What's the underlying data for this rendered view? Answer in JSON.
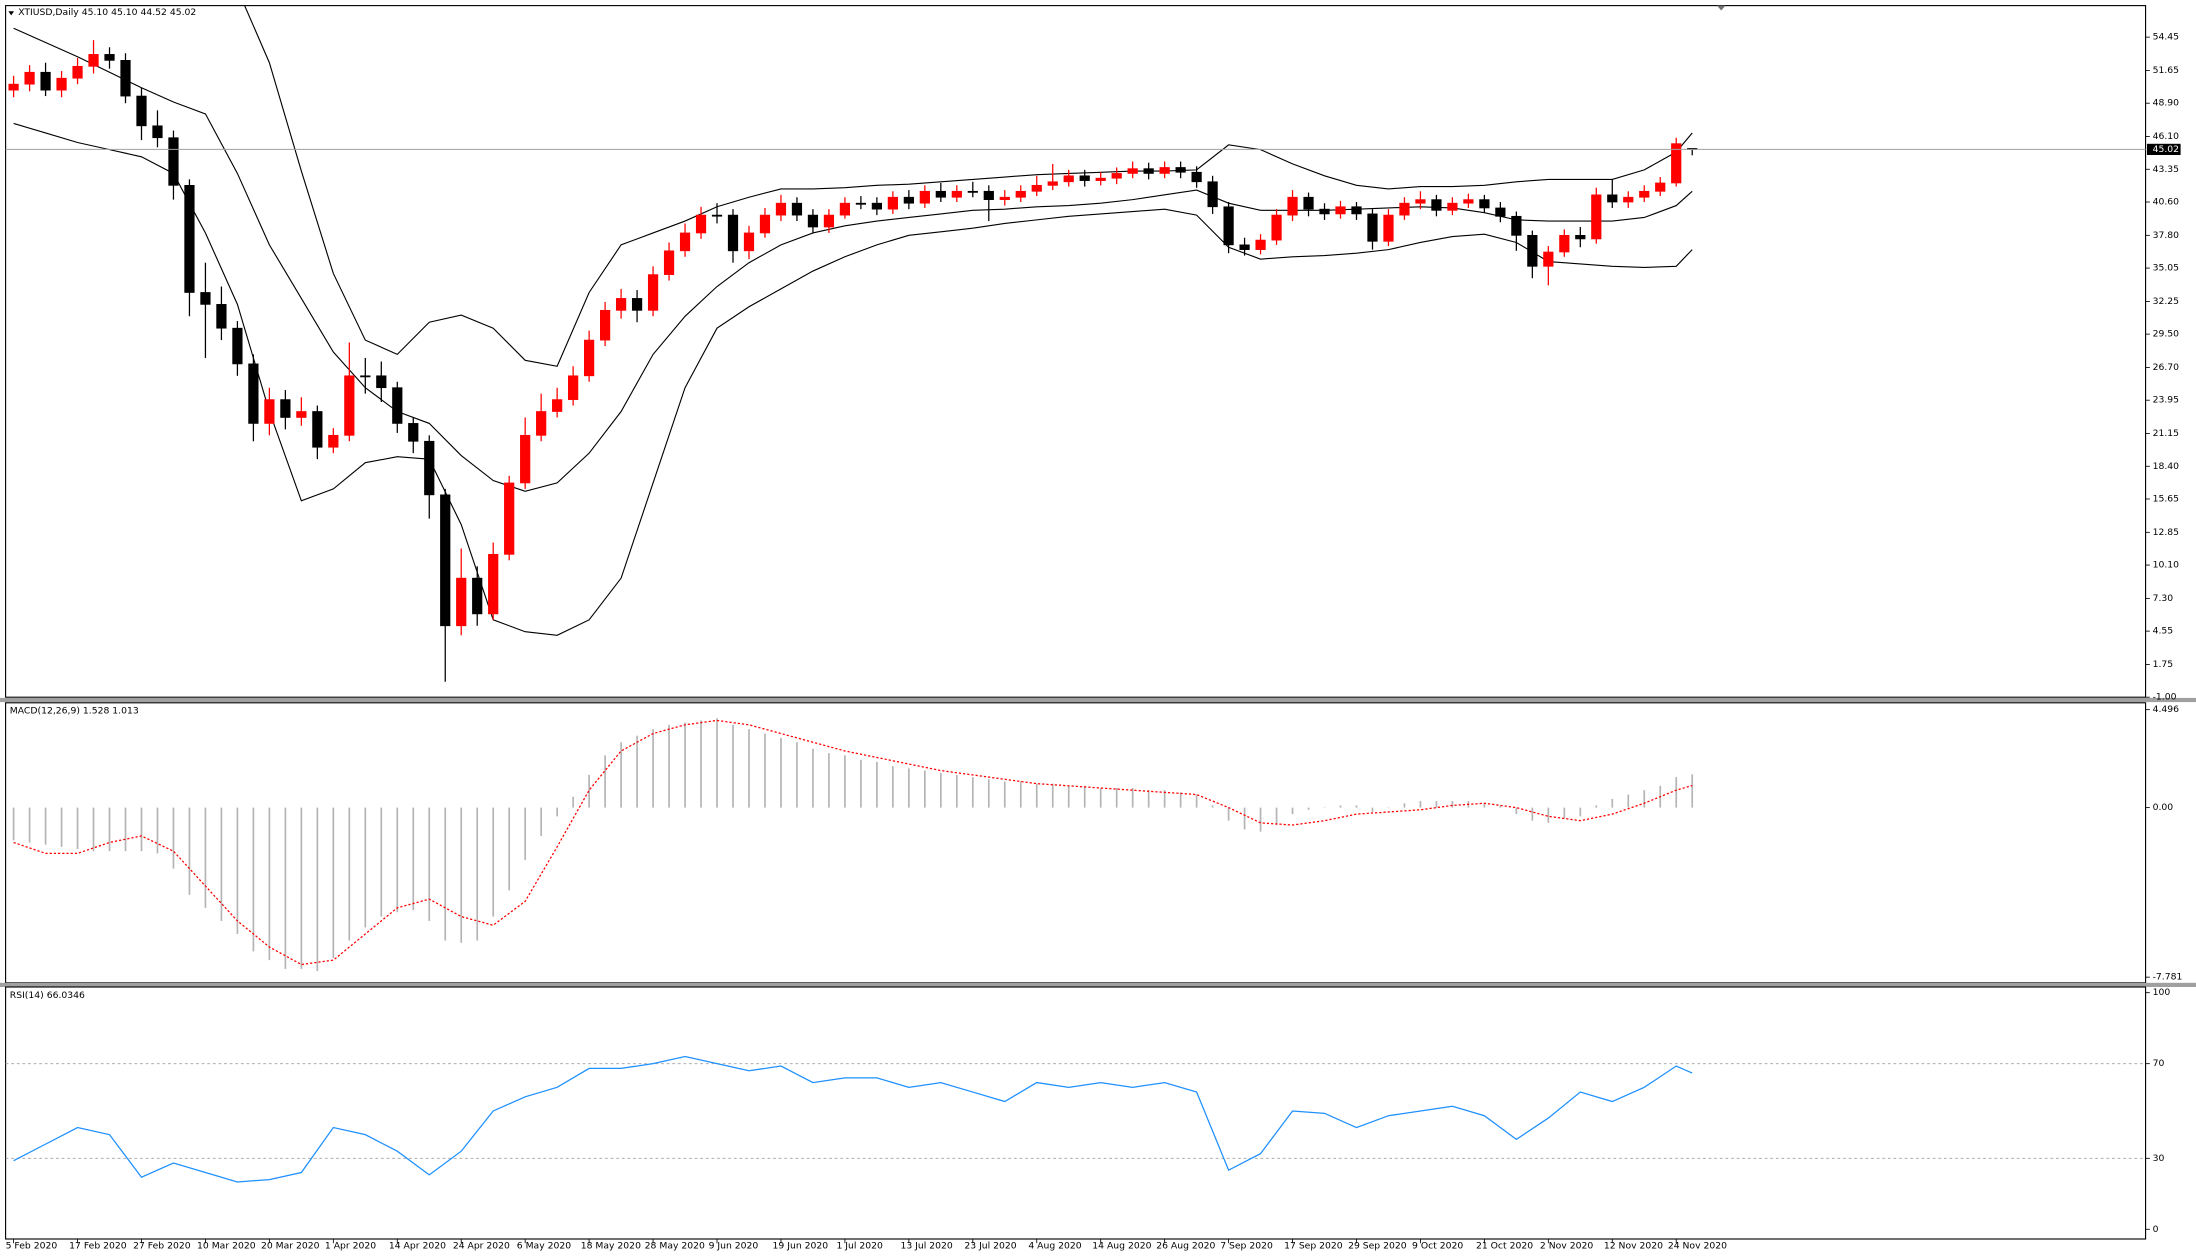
{
  "chart_data": [
    {
      "type": "candlestick",
      "title": "XTIUSD,Daily  45.10 45.10 44.52 45.02",
      "categories": [
        "5 Feb 2020",
        null,
        null,
        null,
        "17 Feb 2020",
        null,
        null,
        null,
        "27 Feb 2020",
        null,
        null,
        null,
        "10 Mar 2020",
        null,
        null,
        null,
        "20 Mar 2020",
        null,
        null,
        null,
        "1 Apr 2020",
        null,
        null,
        null,
        "14 Apr 2020",
        null,
        null,
        null,
        "24 Apr 2020",
        null,
        null,
        null,
        "6 May 2020",
        null,
        null,
        null,
        "18 May 2020",
        null,
        null,
        null,
        "28 May 2020",
        null,
        null,
        null,
        "9 Jun 2020",
        null,
        null,
        null,
        "19 Jun 2020",
        null,
        null,
        null,
        "1 Jul 2020",
        null,
        null,
        null,
        "13 Jul 2020",
        null,
        null,
        null,
        "23 Jul 2020",
        null,
        null,
        null,
        "4 Aug 2020",
        null,
        null,
        null,
        "14 Aug 2020",
        null,
        null,
        null,
        "26 Aug 2020",
        null,
        null,
        null,
        "7 Sep 2020",
        null,
        null,
        null,
        "17 Sep 2020",
        null,
        null,
        null,
        "29 Sep 2020",
        null,
        null,
        null,
        "9 Oct 2020",
        null,
        null,
        null,
        "21 Oct 2020",
        null,
        null,
        null,
        "2 Nov 2020",
        null,
        null,
        null,
        "12 Nov 2020",
        null,
        null,
        null,
        "24 Nov 2020",
        null
      ],
      "open": [
        50.0,
        50.5,
        51.5,
        50,
        51,
        52,
        53,
        52.5,
        49.5,
        47,
        46,
        42,
        33,
        32,
        30,
        27,
        22,
        24,
        22.5,
        23,
        20,
        21,
        26,
        26,
        25,
        22,
        20.5,
        16,
        5,
        9,
        6,
        11,
        17,
        21,
        23,
        24,
        26,
        29,
        31.5,
        32.5,
        31.5,
        34.5,
        36.5,
        38,
        39.5,
        39.5,
        36.5,
        38,
        39.5,
        40.5,
        39.5,
        38.5,
        39.5,
        40.5,
        40.5,
        40,
        41,
        40.5,
        41.5,
        41,
        41.5,
        41.5,
        40.8,
        41,
        41.5,
        42,
        42.3,
        42.8,
        42.4,
        42.6,
        43,
        43.4,
        43,
        43.5,
        43.1,
        42.3,
        40.2,
        37,
        36.6,
        37.4,
        39.5,
        41,
        40,
        39.6,
        40.2,
        39.6,
        37.3,
        39.5,
        40.5,
        40.8,
        39.9,
        40.5,
        40.8,
        40.1,
        39.4,
        37.8,
        35.2,
        36.4,
        37.8,
        37.5,
        41.2,
        40.6,
        41,
        41.5,
        42.2,
        45.1
      ],
      "high": [
        51.2,
        52.1,
        52.3,
        51.6,
        52.7,
        54.2,
        53.6,
        53.1,
        50.2,
        48.3,
        46.6,
        42.5,
        35.5,
        33.5,
        30.6,
        27.8,
        25,
        24.8,
        24.2,
        23.5,
        21.6,
        28.8,
        27.5,
        27.2,
        25.5,
        22.5,
        21,
        16.5,
        11.5,
        10,
        12,
        17.6,
        22.5,
        24.5,
        25,
        26.8,
        29.8,
        32.2,
        33.3,
        33.2,
        35.2,
        37.2,
        38.8,
        40.2,
        40.5,
        40,
        38.6,
        40.1,
        41.2,
        41,
        40,
        40,
        41,
        41.1,
        41,
        41.5,
        41.6,
        42,
        42.2,
        42,
        42.3,
        42,
        41.6,
        42,
        42.8,
        43.8,
        43.3,
        43.3,
        43.1,
        43.5,
        44,
        43.9,
        44,
        44,
        43.6,
        42.8,
        40.6,
        37.6,
        37.9,
        40,
        41.6,
        41.4,
        40.5,
        40.7,
        40.6,
        40,
        40,
        41,
        41.5,
        41.2,
        41,
        41.3,
        41.2,
        40.6,
        39.8,
        38.2,
        36.9,
        38.3,
        38.5,
        41.8,
        42.5,
        41.5,
        42,
        42.7,
        46,
        45.1
      ],
      "low": [
        49.4,
        49.9,
        49.5,
        49.4,
        50.5,
        51.4,
        51.8,
        48.9,
        45.8,
        45.2,
        40.8,
        31,
        27.5,
        29,
        26,
        20.5,
        21,
        21.5,
        21.8,
        19,
        19.5,
        20.5,
        24.5,
        23.8,
        21.2,
        19.5,
        14,
        0.3,
        4.2,
        5,
        5.5,
        10.5,
        16.5,
        20.5,
        22.5,
        23.5,
        25.5,
        28.5,
        30.8,
        30.5,
        31,
        34,
        36,
        37.5,
        38.8,
        35.5,
        35.8,
        37.6,
        39,
        39,
        38,
        38,
        39.2,
        40,
        39.5,
        39.6,
        40,
        40.1,
        40.6,
        40.6,
        41,
        39,
        40.3,
        40.6,
        41.1,
        41.6,
        41.9,
        41.9,
        42,
        42.1,
        42.6,
        42.5,
        42.6,
        42.6,
        41.8,
        39.6,
        36.3,
        36.1,
        36.2,
        37,
        39,
        39.4,
        39.1,
        39.2,
        39.1,
        36.6,
        36.9,
        39.1,
        40,
        39.4,
        39.5,
        40.1,
        39.7,
        38.9,
        36.5,
        34.2,
        33.6,
        36,
        36.8,
        37.1,
        40.1,
        40.1,
        40.6,
        41.1,
        41.9,
        44.52
      ],
      "close": [
        50.5,
        51.5,
        50,
        51,
        52,
        53,
        52.5,
        49.5,
        47,
        46,
        42,
        33,
        32,
        30,
        27,
        22,
        24,
        22.5,
        23,
        20,
        21,
        26,
        26,
        25,
        22,
        20.5,
        16,
        5,
        9,
        6,
        11,
        17,
        21,
        23,
        24,
        26,
        29,
        31.5,
        32.5,
        31.5,
        34.5,
        36.5,
        38,
        39.5,
        39.5,
        36.5,
        38,
        39.5,
        40.5,
        39.5,
        38.5,
        39.5,
        40.5,
        40.5,
        40,
        41,
        40.5,
        41.5,
        41,
        41.5,
        41.5,
        40.8,
        41,
        41.5,
        42,
        42.3,
        42.8,
        42.4,
        42.6,
        43,
        43.4,
        43,
        43.5,
        43.1,
        42.3,
        40.2,
        37,
        36.6,
        37.4,
        39.5,
        41,
        40,
        39.6,
        40.2,
        39.6,
        37.3,
        39.5,
        40.5,
        40.8,
        39.9,
        40.5,
        40.8,
        40.1,
        39.4,
        37.8,
        35.2,
        36.4,
        37.8,
        37.5,
        41.2,
        40.6,
        41,
        41.5,
        42.2,
        45.5,
        45.02
      ],
      "up_color": "#ff0000",
      "down_color": "#000000",
      "line_x": [
        0,
        2,
        4,
        6,
        8,
        10,
        12,
        14,
        16,
        18,
        20,
        22,
        24,
        26,
        28,
        30,
        32,
        34,
        36,
        38,
        40,
        42,
        44,
        46,
        48,
        50,
        52,
        54,
        56,
        58,
        60,
        62,
        64,
        66,
        68,
        70,
        72,
        74,
        76,
        78,
        80,
        82,
        84,
        86,
        88,
        90,
        92,
        94,
        96,
        98,
        100,
        102,
        104,
        105
      ],
      "bollinger_upper": [
        63,
        63,
        63,
        62.5,
        62,
        61.5,
        60.5,
        58.5,
        52.3,
        43.2,
        34.6,
        29,
        27.8,
        30.5,
        31.1,
        30,
        27.3,
        26.8,
        33,
        37,
        38,
        39,
        40.2,
        41,
        41.7,
        41.7,
        41.8,
        42,
        42.1,
        42.3,
        42.5,
        42.7,
        42.9,
        43,
        43.1,
        43.2,
        43.2,
        43.3,
        45.4,
        45,
        43.8,
        42.8,
        42,
        41.7,
        41.9,
        41.9,
        42,
        42.3,
        42.5,
        42.5,
        42.5,
        43.3,
        44.8,
        46.4
      ],
      "bollinger_middle": [
        55.2,
        54,
        52.8,
        51.5,
        50.2,
        49,
        48,
        43,
        37,
        32.5,
        28,
        25,
        23,
        22,
        19.3,
        17.2,
        16.3,
        17,
        19.5,
        23,
        27.8,
        31,
        33.5,
        35.5,
        37,
        38,
        38.6,
        39,
        39.3,
        39.6,
        39.9,
        40,
        40.2,
        40.3,
        40.5,
        40.8,
        41.2,
        41.6,
        40.5,
        39.9,
        39.9,
        39.9,
        40,
        40.1,
        40.2,
        40.1,
        39.7,
        39.1,
        39,
        39,
        39,
        39.3,
        40.3,
        41.5
      ],
      "bollinger_lower": [
        47.2,
        46.4,
        45.6,
        45,
        44.4,
        43,
        38,
        32,
        23,
        15.5,
        16.5,
        18.7,
        19.2,
        19,
        13.5,
        5.5,
        4.5,
        4.2,
        5.5,
        9,
        17,
        25,
        30,
        31.8,
        33.3,
        34.8,
        36,
        37,
        37.8,
        38.1,
        38.4,
        38.8,
        39.1,
        39.4,
        39.6,
        39.8,
        40,
        39.5,
        36.8,
        35.8,
        36,
        36.1,
        36.3,
        36.6,
        37.2,
        37.7,
        37.9,
        37.2,
        35.6,
        35.4,
        35.2,
        35.1,
        35.2,
        36.6
      ],
      "band_color": "#000000",
      "current_price": 45.02,
      "ylim": [
        -1,
        57.1
      ],
      "yticks": [
        54.45,
        51.65,
        {
          "value": 48.9,
          "label": "48.90"
        },
        {
          "value": 46.1,
          "label": "46.10"
        },
        43.35,
        {
          "value": 40.6,
          "label": "40.60"
        },
        {
          "value": 37.8,
          "label": "37.80"
        },
        35.05,
        32.25,
        {
          "value": 29.5,
          "label": "29.50"
        },
        {
          "value": 26.7,
          "label": "26.70"
        },
        23.95,
        21.15,
        {
          "value": 18.4,
          "label": "18.40"
        },
        15.65,
        12.85,
        {
          "value": 10.1,
          "label": "10.10"
        },
        {
          "value": 7.3,
          "label": "7.30"
        },
        4.55,
        1.75,
        {
          "value": -1,
          "label": "-1.00"
        }
      ]
    },
    {
      "type": "macd",
      "title": "MACD(12,26,9) 1.528 1.013",
      "histogram": [
        -1.5,
        -1.6,
        -1.7,
        -1.8,
        -1.9,
        -2.0,
        -2.0,
        -2.0,
        -2.0,
        -2.1,
        -2.8,
        -4.0,
        -4.6,
        -5.2,
        -5.8,
        -6.6,
        -7.0,
        -7.4,
        -7.4,
        -7.5,
        -6.9,
        -6.1,
        -5.5,
        -5.0,
        -4.8,
        -4.7,
        -5.2,
        -6.1,
        -6.2,
        -6.1,
        -5.0,
        -3.8,
        -2.4,
        -1.3,
        -0.4,
        0.5,
        1.5,
        2.4,
        3.0,
        3.3,
        3.6,
        3.8,
        3.9,
        4.0,
        4.1,
        3.8,
        3.6,
        3.4,
        3.2,
        3.0,
        2.7,
        2.5,
        2.4,
        2.2,
        2.1,
        1.9,
        1.8,
        1.7,
        1.6,
        1.5,
        1.4,
        1.3,
        1.2,
        1.2,
        1.1,
        1.1,
        1.0,
        1.0,
        0.9,
        0.9,
        0.9,
        0.8,
        0.8,
        0.7,
        0.6,
        0.1,
        -0.6,
        -1.0,
        -1.1,
        -0.8,
        -0.3,
        -0.1,
        0.0,
        0.1,
        0.1,
        -0.2,
        0.0,
        0.2,
        0.3,
        0.3,
        0.3,
        0.3,
        0.2,
        0.1,
        -0.3,
        -0.6,
        -0.7,
        -0.5,
        -0.4,
        0.1,
        0.4,
        0.6,
        0.8,
        1.0,
        1.4,
        1.528
      ],
      "histogram_color": "#b4b4b4",
      "line_x": [
        0,
        2,
        4,
        6,
        8,
        10,
        12,
        14,
        16,
        18,
        20,
        22,
        24,
        26,
        28,
        30,
        32,
        34,
        36,
        38,
        40,
        42,
        44,
        46,
        48,
        50,
        52,
        54,
        56,
        58,
        60,
        62,
        64,
        66,
        68,
        70,
        72,
        74,
        76,
        78,
        80,
        82,
        84,
        86,
        88,
        90,
        92,
        94,
        96,
        98,
        100,
        102,
        104,
        105
      ],
      "signal": [
        -1.6,
        -2.1,
        -2.1,
        -1.6,
        -1.3,
        -2.0,
        -3.6,
        -5.2,
        -6.4,
        -7.2,
        -7.0,
        -5.8,
        -4.6,
        -4.2,
        -5.0,
        -5.4,
        -4.3,
        -1.8,
        0.8,
        2.6,
        3.4,
        3.8,
        4.0,
        3.8,
        3.4,
        3.0,
        2.6,
        2.3,
        2.0,
        1.7,
        1.5,
        1.3,
        1.1,
        1.0,
        0.9,
        0.8,
        0.7,
        0.6,
        0.0,
        -0.7,
        -0.8,
        -0.6,
        -0.3,
        -0.2,
        -0.1,
        0.1,
        0.2,
        0.0,
        -0.4,
        -0.6,
        -0.3,
        0.2,
        0.8,
        1.013
      ],
      "signal_color": "#ff0000",
      "ylim": [
        -8.04,
        4.81
      ],
      "yticks": [
        4.496,
        {
          "value": 0,
          "label": "0.00"
        },
        -7.781
      ]
    },
    {
      "type": "rsi",
      "title": "RSI(14) 66.0346",
      "line_x": [
        0,
        2,
        4,
        6,
        8,
        10,
        12,
        14,
        16,
        18,
        20,
        22,
        24,
        26,
        28,
        30,
        32,
        34,
        36,
        38,
        40,
        42,
        44,
        46,
        48,
        50,
        52,
        54,
        56,
        58,
        60,
        62,
        64,
        66,
        68,
        70,
        72,
        74,
        76,
        78,
        80,
        82,
        84,
        86,
        88,
        90,
        92,
        94,
        96,
        98,
        100,
        102,
        104,
        105
      ],
      "values": [
        29,
        36,
        43,
        40,
        22,
        28,
        24,
        20,
        21,
        24,
        43,
        40,
        33,
        23,
        33,
        50,
        56,
        60,
        68,
        68,
        70,
        73,
        70,
        67,
        69,
        62,
        64,
        64,
        60,
        62,
        58,
        54,
        62,
        60,
        62,
        60,
        62,
        58,
        25,
        32,
        50,
        49,
        43,
        48,
        50,
        52,
        48,
        38,
        47,
        58,
        54,
        60,
        69,
        66.0346
      ],
      "color": "#1e90ff",
      "levels": [
        70,
        30
      ],
      "ylim": [
        -4.1,
        102.4
      ],
      "yticks": [
        100,
        70,
        30,
        0
      ]
    }
  ]
}
